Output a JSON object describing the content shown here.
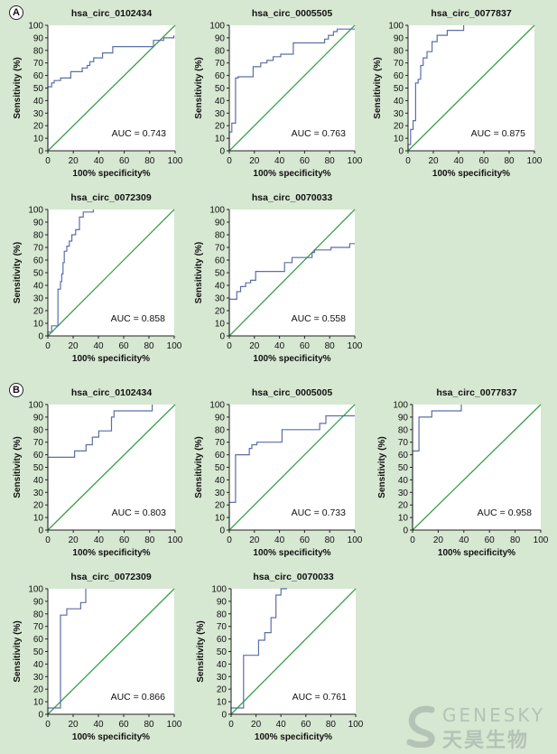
{
  "panels": [
    {
      "label": "A"
    },
    {
      "label": "B"
    }
  ],
  "watermark": {
    "english": "GENESKY",
    "chinese": "天昊生物"
  },
  "colors": {
    "roc_curve": "#5b6fa8",
    "reference_line": "#3aa04a",
    "axis": "#222222",
    "plot_background": "#ffffff",
    "page_background": "#d6e7d2"
  },
  "chart_data": [
    {
      "type": "line",
      "panel": "A",
      "title": "hsa_circ_0102434",
      "xlabel": "100% specificity%",
      "ylabel": "Sensitivity (%)",
      "xlim": [
        0,
        100
      ],
      "ylim": [
        0,
        100
      ],
      "xticks": [
        0,
        20,
        40,
        60,
        80,
        100
      ],
      "yticks": [
        0,
        10,
        20,
        30,
        40,
        50,
        60,
        70,
        80,
        90,
        100
      ],
      "annotation": "AUC = 0.743",
      "series": [
        {
          "x": [
            0,
            0,
            3,
            3,
            5,
            5,
            10,
            10,
            18,
            18,
            27,
            27,
            31,
            31,
            33,
            33,
            36,
            36,
            43,
            43,
            51,
            51,
            83,
            83,
            91,
            91,
            99,
            99
          ],
          "y": [
            0,
            51,
            51,
            54,
            54,
            56,
            56,
            58,
            58,
            63,
            63,
            66,
            66,
            68,
            68,
            71,
            71,
            74,
            74,
            78,
            78,
            83,
            83,
            88,
            88,
            90,
            90,
            92
          ]
        }
      ],
      "reference": {
        "x": [
          0,
          100
        ],
        "y": [
          0,
          100
        ]
      }
    },
    {
      "type": "line",
      "panel": "A",
      "title": "hsa_circ_0005505",
      "xlabel": "100% specificity%",
      "ylabel": "Sensitivity (%)",
      "xlim": [
        0,
        100
      ],
      "ylim": [
        0,
        100
      ],
      "xticks": [
        0,
        20,
        40,
        60,
        80,
        100
      ],
      "yticks": [
        0,
        10,
        20,
        30,
        40,
        50,
        60,
        70,
        80,
        90,
        100
      ],
      "annotation": "AUC = 0.763",
      "series": [
        {
          "x": [
            0,
            0,
            2,
            2,
            5,
            5,
            7,
            7,
            19,
            19,
            25,
            25,
            30,
            30,
            35,
            35,
            41,
            41,
            51,
            51,
            76,
            76,
            79,
            79,
            83,
            83,
            86,
            86,
            100
          ],
          "y": [
            0,
            15,
            15,
            22,
            22,
            58,
            58,
            59,
            59,
            67,
            67,
            70,
            70,
            72,
            72,
            75,
            75,
            77,
            77,
            86,
            86,
            89,
            89,
            92,
            92,
            95,
            95,
            97,
            97
          ]
        }
      ],
      "reference": {
        "x": [
          0,
          100
        ],
        "y": [
          0,
          100
        ]
      }
    },
    {
      "type": "line",
      "panel": "A",
      "title": "hsa_circ_0077837",
      "xlabel": "100% specificity%",
      "ylabel": "Sensitivity (%)",
      "xlim": [
        0,
        100
      ],
      "ylim": [
        0,
        100
      ],
      "xticks": [
        0,
        20,
        40,
        60,
        80,
        100
      ],
      "yticks": [
        0,
        10,
        20,
        30,
        40,
        50,
        60,
        70,
        80,
        90,
        100
      ],
      "annotation": "AUC = 0.875",
      "series": [
        {
          "x": [
            0,
            0,
            2,
            2,
            4,
            4,
            6,
            6,
            8,
            8,
            10,
            10,
            12,
            12,
            15,
            15,
            19,
            19,
            23,
            23,
            31,
            31,
            44,
            44
          ],
          "y": [
            0,
            5,
            5,
            17,
            17,
            24,
            24,
            54,
            54,
            57,
            57,
            68,
            68,
            74,
            74,
            79,
            79,
            87,
            87,
            92,
            92,
            96,
            96,
            100
          ]
        }
      ],
      "reference": {
        "x": [
          0,
          100
        ],
        "y": [
          0,
          100
        ]
      }
    },
    {
      "type": "line",
      "panel": "A",
      "title": "hsa_circ_0072309",
      "xlabel": "100% specificity%",
      "ylabel": "Sensitivity (%)",
      "xlim": [
        0,
        100
      ],
      "ylim": [
        0,
        100
      ],
      "xticks": [
        0,
        20,
        40,
        60,
        80,
        100
      ],
      "yticks": [
        0,
        10,
        20,
        30,
        40,
        50,
        60,
        70,
        80,
        90,
        100
      ],
      "annotation": "AUC = 0.858",
      "series": [
        {
          "x": [
            0,
            0,
            3,
            3,
            8,
            8,
            10,
            10,
            11,
            11,
            12,
            12,
            13,
            13,
            15,
            15,
            17,
            17,
            19,
            19,
            22,
            22,
            25,
            25,
            28,
            28,
            36,
            36
          ],
          "y": [
            0,
            3,
            3,
            8,
            8,
            37,
            37,
            43,
            43,
            49,
            49,
            58,
            58,
            67,
            67,
            71,
            71,
            75,
            75,
            80,
            80,
            84,
            84,
            94,
            94,
            98,
            98,
            100
          ]
        }
      ],
      "reference": {
        "x": [
          0,
          100
        ],
        "y": [
          0,
          100
        ]
      }
    },
    {
      "type": "line",
      "panel": "A",
      "title": "hsa_circ_0070033",
      "xlabel": "100% specificity%",
      "ylabel": "Sensitivity (%)",
      "xlim": [
        0,
        100
      ],
      "ylim": [
        0,
        100
      ],
      "xticks": [
        0,
        20,
        40,
        60,
        80,
        100
      ],
      "yticks": [
        0,
        10,
        20,
        30,
        40,
        50,
        60,
        70,
        80,
        90,
        100
      ],
      "annotation": "AUC = 0.558",
      "series": [
        {
          "x": [
            0,
            0,
            6,
            6,
            9,
            9,
            13,
            13,
            17,
            17,
            21,
            21,
            44,
            44,
            50,
            50,
            66,
            66,
            68,
            68,
            81,
            81,
            96,
            96,
            100
          ],
          "y": [
            0,
            29,
            29,
            35,
            35,
            39,
            39,
            42,
            42,
            44,
            44,
            51,
            51,
            58,
            58,
            62,
            62,
            66,
            66,
            68,
            68,
            70,
            70,
            73,
            73
          ]
        }
      ],
      "reference": {
        "x": [
          0,
          100
        ],
        "y": [
          0,
          100
        ]
      }
    },
    {
      "type": "line",
      "panel": "B",
      "title": "hsa_circ_0102434",
      "xlabel": "100% specificity%",
      "ylabel": "Sensitivity (%)",
      "xlim": [
        0,
        100
      ],
      "ylim": [
        0,
        100
      ],
      "xticks": [
        0,
        20,
        40,
        60,
        80,
        100
      ],
      "yticks": [
        0,
        10,
        20,
        30,
        40,
        50,
        60,
        70,
        80,
        90,
        100
      ],
      "annotation": "AUC = 0.803",
      "series": [
        {
          "x": [
            0,
            0,
            21,
            21,
            30,
            30,
            35,
            35,
            40,
            40,
            50,
            50,
            52,
            52,
            82,
            82
          ],
          "y": [
            0,
            58,
            58,
            63,
            63,
            68,
            68,
            74,
            74,
            79,
            79,
            90,
            90,
            95,
            95,
            100
          ]
        }
      ],
      "reference": {
        "x": [
          0,
          100
        ],
        "y": [
          0,
          100
        ]
      }
    },
    {
      "type": "line",
      "panel": "B",
      "title": "hsa_circ_0005005",
      "xlabel": "100% specificity%",
      "ylabel": "Sensitivity (%)",
      "xlim": [
        0,
        100
      ],
      "ylim": [
        0,
        100
      ],
      "xticks": [
        0,
        20,
        40,
        60,
        80,
        100
      ],
      "yticks": [
        0,
        10,
        20,
        30,
        40,
        50,
        60,
        70,
        80,
        90,
        100
      ],
      "annotation": "AUC = 0.733",
      "series": [
        {
          "x": [
            0,
            0,
            5,
            5,
            16,
            16,
            18,
            18,
            22,
            22,
            42,
            42,
            72,
            72,
            77,
            77,
            100
          ],
          "y": [
            0,
            22,
            22,
            60,
            60,
            65,
            65,
            68,
            68,
            70,
            70,
            80,
            80,
            85,
            85,
            91,
            91
          ]
        }
      ],
      "reference": {
        "x": [
          0,
          100
        ],
        "y": [
          0,
          100
        ]
      }
    },
    {
      "type": "line",
      "panel": "B",
      "title": "hsa_circ_0077837",
      "xlabel": "100% specificity%",
      "ylabel": "Sensitivity (%)",
      "xlim": [
        0,
        100
      ],
      "ylim": [
        0,
        100
      ],
      "xticks": [
        0,
        20,
        40,
        60,
        80,
        100
      ],
      "yticks": [
        0,
        10,
        20,
        30,
        40,
        50,
        60,
        70,
        80,
        90,
        100
      ],
      "annotation": "AUC = 0.958",
      "series": [
        {
          "x": [
            0,
            0,
            5,
            5,
            15,
            15,
            38,
            38
          ],
          "y": [
            0,
            63,
            63,
            90,
            90,
            95,
            95,
            100
          ]
        }
      ],
      "reference": {
        "x": [
          0,
          100
        ],
        "y": [
          0,
          100
        ]
      }
    },
    {
      "type": "line",
      "panel": "B",
      "title": "hsa_circ_0072309",
      "xlabel": "100% specificity%",
      "ylabel": "Sensitivity (%)",
      "xlim": [
        0,
        100
      ],
      "ylim": [
        0,
        100
      ],
      "xticks": [
        0,
        20,
        40,
        60,
        80,
        100
      ],
      "yticks": [
        0,
        10,
        20,
        30,
        40,
        50,
        60,
        70,
        80,
        90,
        100
      ],
      "annotation": "AUC = 0.866",
      "series": [
        {
          "x": [
            0,
            0,
            10,
            10,
            15,
            15,
            26,
            26,
            30,
            30
          ],
          "y": [
            0,
            5,
            5,
            79,
            79,
            84,
            84,
            89,
            89,
            100
          ]
        }
      ],
      "reference": {
        "x": [
          0,
          100
        ],
        "y": [
          0,
          100
        ]
      }
    },
    {
      "type": "line",
      "panel": "B",
      "title": "hsa_circ_0070033",
      "xlabel": "100% specificity%",
      "ylabel": "Sensitivity (%)",
      "xlim": [
        0,
        100
      ],
      "ylim": [
        0,
        100
      ],
      "xticks": [
        0,
        20,
        40,
        60,
        80,
        100
      ],
      "yticks": [
        0,
        10,
        20,
        30,
        40,
        50,
        60,
        70,
        80,
        90,
        100
      ],
      "annotation": "AUC = 0.761",
      "series": [
        {
          "x": [
            0,
            0,
            10,
            10,
            22,
            22,
            27,
            27,
            32,
            32,
            36,
            36,
            40,
            40,
            45,
            45
          ],
          "y": [
            0,
            5,
            5,
            47,
            47,
            59,
            59,
            65,
            65,
            77,
            77,
            95,
            95,
            100,
            100,
            100
          ]
        }
      ],
      "reference": {
        "x": [
          0,
          100
        ],
        "y": [
          0,
          100
        ]
      }
    }
  ]
}
